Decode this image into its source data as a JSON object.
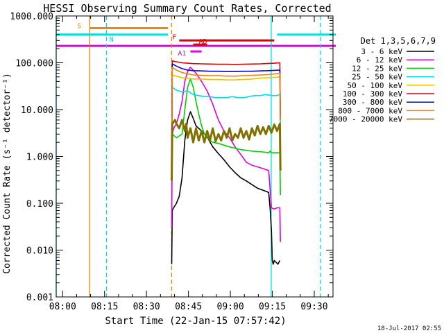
{
  "chart_data": {
    "type": "line",
    "title": "HESSI Observing Summary Count Rates, Corrected",
    "xlabel": "Start Time (22-Jan-15 07:57:42)",
    "ylabel": "Corrected Count Rate (s⁻¹ detector⁻¹)",
    "x_unit": "minutes after 07:57:42",
    "xlim": [
      0,
      99
    ],
    "ylim": [
      0.001,
      1000
    ],
    "yscale": "log",
    "grid": false,
    "legend_position": "right",
    "x_ticks": [
      {
        "label": "08:00",
        "value": 2.3
      },
      {
        "label": "08:15",
        "value": 17.3
      },
      {
        "label": "08:30",
        "value": 32.3
      },
      {
        "label": "08:45",
        "value": 47.3
      },
      {
        "label": "09:00",
        "value": 62.3
      },
      {
        "label": "09:15",
        "value": 77.3
      },
      {
        "label": "09:30",
        "value": 92.3
      }
    ],
    "y_ticks": [
      {
        "label": "0.001",
        "value": 0.001
      },
      {
        "label": "0.010",
        "value": 0.01
      },
      {
        "label": "0.100",
        "value": 0.1
      },
      {
        "label": "1.000",
        "value": 1
      },
      {
        "label": "10.000",
        "value": 10
      },
      {
        "label": "100.000",
        "value": 100
      },
      {
        "label": "1000.000",
        "value": 1000
      }
    ],
    "legend_title": "Det 1,3,5,6,7,9",
    "series": [
      {
        "name": "3 - 6 keV",
        "color": "#000000",
        "x": [
          41.3,
          41.5,
          42,
          43,
          44,
          45,
          46,
          47,
          48,
          49,
          50,
          52,
          54,
          56,
          58,
          60,
          62,
          64,
          66,
          68,
          70,
          72,
          74,
          76,
          76.5,
          77,
          77.3,
          77.6,
          78,
          79.3,
          80
        ],
        "y": [
          0.005,
          0.07,
          0.08,
          0.1,
          0.14,
          0.35,
          2.2,
          6,
          9,
          6.5,
          4.5,
          3.5,
          2.6,
          1.6,
          1.15,
          0.85,
          0.6,
          0.45,
          0.35,
          0.3,
          0.25,
          0.21,
          0.19,
          0.17,
          0.08,
          0.025,
          0.006,
          0.005,
          0.006,
          0.005,
          0.006
        ]
      },
      {
        "name": "6 - 12 keV",
        "color": "#e000e0",
        "x": [
          41.3,
          41.5,
          42,
          43,
          44,
          45,
          46,
          47,
          48,
          50,
          52,
          54,
          56,
          58,
          60,
          62,
          64,
          66,
          68,
          70,
          72,
          74,
          76,
          76.5,
          77,
          78,
          79,
          80,
          80.2
        ],
        "y": [
          0.03,
          3,
          4,
          5,
          8,
          15,
          40,
          65,
          80,
          60,
          40,
          25,
          13,
          6,
          3.5,
          2.5,
          1.6,
          1.1,
          0.75,
          0.65,
          0.6,
          0.55,
          0.5,
          0.2,
          0.08,
          0.075,
          0.08,
          0.08,
          0.015
        ]
      },
      {
        "name": "12 - 25 keV",
        "color": "#00d000",
        "x": [
          41.3,
          41.5,
          43,
          45,
          46,
          47,
          48,
          49,
          50,
          51,
          52,
          53,
          54,
          55,
          56,
          58,
          62,
          66,
          70,
          74,
          76,
          76.5,
          77,
          79,
          80,
          80.2
        ],
        "y": [
          0.3,
          3,
          2.5,
          3,
          10,
          30,
          45,
          30,
          15,
          8,
          4.5,
          3,
          2.5,
          2.2,
          2,
          1.9,
          1.6,
          1.4,
          1.3,
          1.25,
          1.2,
          1.3,
          1.2,
          1.2,
          1.2,
          0.15
        ]
      },
      {
        "name": "25 - 50 keV",
        "color": "#00e0e0",
        "x": [
          41.3,
          41.5,
          43,
          45,
          47,
          49,
          51,
          53,
          55,
          57,
          59,
          61,
          63,
          65,
          67,
          69,
          71,
          73,
          75,
          77,
          79,
          80,
          80.2
        ],
        "y": [
          0.3,
          30,
          26,
          24,
          25,
          21,
          20,
          19,
          19,
          18,
          18,
          18,
          19,
          18,
          18,
          19,
          20,
          20,
          21,
          20,
          20,
          21,
          5
        ]
      },
      {
        "name": "50 - 100 keV",
        "color": "#e8c000",
        "x": [
          41.3,
          41.5,
          43,
          45,
          47,
          49,
          52,
          55,
          58,
          61,
          64,
          67,
          70,
          73,
          76,
          78,
          80,
          80.2
        ],
        "y": [
          0.5,
          55,
          52,
          48,
          47,
          45,
          45,
          44,
          44,
          43,
          43,
          44,
          45,
          47,
          48,
          49,
          50,
          6
        ]
      },
      {
        "name": "100 - 300 keV",
        "color": "#e00000",
        "x": [
          41.3,
          41.5,
          43,
          45,
          47,
          49,
          52,
          55,
          58,
          61,
          64,
          67,
          70,
          73,
          76,
          78,
          80,
          80.2
        ],
        "y": [
          1,
          110,
          105,
          100,
          98,
          96,
          95,
          94,
          93,
          93,
          92,
          93,
          94,
          95,
          97,
          98,
          100,
          6
        ]
      },
      {
        "name": "300 - 800 keV",
        "color": "#0000d0",
        "x": [
          41.3,
          41.5,
          43,
          45,
          47,
          49,
          52,
          55,
          58,
          61,
          64,
          67,
          70,
          73,
          76,
          78,
          80,
          80.2
        ],
        "y": [
          0.8,
          95,
          85,
          75,
          70,
          68,
          67,
          66,
          66,
          65,
          65,
          66,
          66,
          67,
          68,
          69,
          70,
          6
        ]
      },
      {
        "name": "800 - 7000 keV",
        "color": "#ff8000",
        "x": [
          41.3,
          41.5,
          43,
          45,
          47,
          49,
          52,
          55,
          58,
          61,
          64,
          67,
          70,
          73,
          76,
          78,
          80,
          80.2
        ],
        "y": [
          0.5,
          80,
          70,
          62,
          58,
          55,
          54,
          53,
          53,
          52,
          52,
          53,
          54,
          55,
          56,
          58,
          60,
          6
        ]
      },
      {
        "name": "7000 - 20000 keV",
        "color": "#807000",
        "x": [
          41.3,
          41.5,
          42.5,
          43,
          44,
          45,
          46,
          46.5,
          47,
          48,
          49,
          50,
          51,
          52,
          53,
          54,
          55,
          56,
          57,
          58,
          59,
          60,
          61,
          62,
          63,
          64,
          65,
          66,
          67,
          68,
          69,
          70,
          71,
          72,
          73,
          74,
          75,
          76,
          77,
          78,
          79,
          80,
          80.2
        ],
        "y": [
          0.3,
          5,
          6,
          5,
          4,
          6,
          3.5,
          5,
          2.5,
          4,
          2,
          4,
          2.2,
          3.5,
          2,
          3.5,
          2.2,
          4,
          2.1,
          3,
          2.2,
          3.5,
          2.5,
          4,
          2.2,
          3,
          2.5,
          4,
          2.5,
          3.5,
          2.3,
          4,
          2.8,
          4.5,
          3,
          4.2,
          3,
          4.5,
          3.2,
          4.8,
          3.5,
          5,
          0.5
        ]
      }
    ],
    "attenuator_levels": [
      {
        "x": [
          0,
          40
        ],
        "y": [
          400,
          400
        ],
        "color": "#00e0e0"
      },
      {
        "x": [
          79,
          100
        ],
        "y": [
          400,
          400
        ],
        "color": "#00e0e0"
      },
      {
        "x": [
          0,
          100
        ],
        "y": [
          230,
          230
        ],
        "color": "#e000e0"
      }
    ],
    "flag_bars": [
      {
        "label": "S",
        "color": "#ff8000",
        "x": [
          12,
          40
        ],
        "y": 550,
        "label_x": 7.5,
        "label_dy": 0
      },
      {
        "label": "N",
        "color": "#00e0e0",
        "x": [
          0,
          18
        ],
        "y": 400,
        "label_x": 19,
        "label_dy": 10
      },
      {
        "label": "F",
        "color": "#e00000",
        "x": [
          44,
          78
        ],
        "y": 300,
        "label_x": 41.5,
        "label_dy": -2
      },
      {
        "label": "AD",
        "color": "#e00000",
        "x": [
          49,
          54
        ],
        "y": 245,
        "label_x": 51,
        "label_dy": -1
      },
      {
        "label": "A1",
        "color": "#e000e0",
        "x": [
          48,
          52
        ],
        "y": 175,
        "label_x": 43.5,
        "label_dy": 6
      }
    ],
    "vertical_markers": [
      {
        "x": 0,
        "color": "#00e0e0",
        "style": "solid"
      },
      {
        "x": 12,
        "color": "#ff8000",
        "style": "solid"
      },
      {
        "x": 18,
        "color": "#00e0e0",
        "style": "dashed"
      },
      {
        "x": 41.3,
        "color": "#ff8000",
        "style": "dashed"
      },
      {
        "x": 76.9,
        "color": "#00e0e0",
        "style": "solid"
      },
      {
        "x": 94.5,
        "color": "#00e0e0",
        "style": "dashed"
      }
    ]
  },
  "footer": {
    "timestamp": "18-Jul-2017 02:55"
  }
}
